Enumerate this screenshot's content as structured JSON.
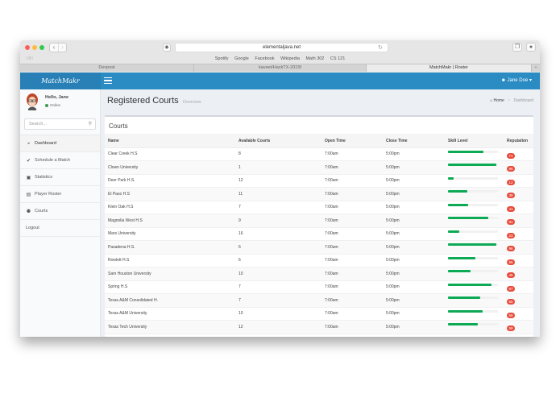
{
  "browser": {
    "url": "elementaljava.net",
    "bookmarks": [
      "Spotify",
      "Google",
      "Facebook",
      "Wikipedia",
      "Math 302",
      "CS 121"
    ],
    "tabs": [
      {
        "label": "Devpost",
        "active": false
      },
      {
        "label": "kaveet/HackTX-2015f",
        "active": false
      },
      {
        "label": "MatchMakr | Roster",
        "active": true
      }
    ],
    "traffic_colors": [
      "#fc605b",
      "#fdbc40",
      "#34c84a"
    ]
  },
  "app": {
    "logo": "MatchMakr",
    "user_menu": "Jane Doe",
    "accent": "#2a8cc2"
  },
  "sidebar": {
    "greeting": "Hello, Jane",
    "status": "Online",
    "search_placeholder": "Search...",
    "items": [
      {
        "label": "Dashboard",
        "icon": "dashboard-icon",
        "glyph": "◒",
        "active": true
      },
      {
        "label": "Schedule a Match",
        "icon": "check-icon",
        "glyph": "✔",
        "active": false
      },
      {
        "label": "Statistics",
        "icon": "chart-icon",
        "glyph": "▣",
        "active": false
      },
      {
        "label": "Player Roster",
        "icon": "list-icon",
        "glyph": "▤",
        "active": false
      },
      {
        "label": "Courts",
        "icon": "map-marker-icon",
        "glyph": "⚉",
        "active": false
      },
      {
        "label": "Logout",
        "icon": "",
        "glyph": "",
        "active": false
      }
    ]
  },
  "header": {
    "title": "Registered Courts",
    "subtitle": "Overview",
    "breadcrumb": {
      "home": "Home",
      "current": "Dashboard"
    }
  },
  "courts": {
    "title": "Courts",
    "columns": [
      "Name",
      "Available Courts",
      "Open Time",
      "Close Time",
      "Skill Level",
      "Reputation"
    ],
    "rows": [
      {
        "name": "Clear Creek H.S",
        "courts": "8",
        "open": "7:00am",
        "close": "5:00pm",
        "skill": 71,
        "rep": "71"
      },
      {
        "name": "Clown University",
        "courts": "1",
        "open": "7:00am",
        "close": "5:00pm",
        "skill": 96,
        "rep": "96"
      },
      {
        "name": "Deer Park H.S.",
        "courts": "12",
        "open": "7:00am",
        "close": "5:00pm",
        "skill": 12,
        "rep": "12"
      },
      {
        "name": "El Paso H.S",
        "courts": "11",
        "open": "7:00am",
        "close": "5:00pm",
        "skill": 39,
        "rep": "39"
      },
      {
        "name": "Klein Oak H.S",
        "courts": "7",
        "open": "7:00am",
        "close": "5:00pm",
        "skill": 41,
        "rep": "41"
      },
      {
        "name": "Magnolia West H.S",
        "courts": "9",
        "open": "7:00am",
        "close": "5:00pm",
        "skill": 81,
        "rep": "81"
      },
      {
        "name": "Mars University",
        "courts": "16",
        "open": "7:00am",
        "close": "5:00pm",
        "skill": 23,
        "rep": "23"
      },
      {
        "name": "Pasadena H.S.",
        "courts": "6",
        "open": "7:00am",
        "close": "5:00pm",
        "skill": 96,
        "rep": "96"
      },
      {
        "name": "Rowlett H.S",
        "courts": "6",
        "open": "7:00am",
        "close": "5:00pm",
        "skill": 55,
        "rep": "55"
      },
      {
        "name": "Sam Houston University",
        "courts": "10",
        "open": "7:00am",
        "close": "5:00pm",
        "skill": 45,
        "rep": "45"
      },
      {
        "name": "Spring H.S",
        "courts": "7",
        "open": "7:00am",
        "close": "5:00pm",
        "skill": 87,
        "rep": "87"
      },
      {
        "name": "Texas A&M Consolidated H.",
        "courts": "7",
        "open": "7:00am",
        "close": "5:00pm",
        "skill": 65,
        "rep": "65"
      },
      {
        "name": "Texas A&M University",
        "courts": "10",
        "open": "7:00am",
        "close": "5:00pm",
        "skill": 69,
        "rep": "69"
      },
      {
        "name": "Texas Tech University",
        "courts": "12",
        "open": "7:00am",
        "close": "5:00pm",
        "skill": 59,
        "rep": "59"
      }
    ]
  }
}
